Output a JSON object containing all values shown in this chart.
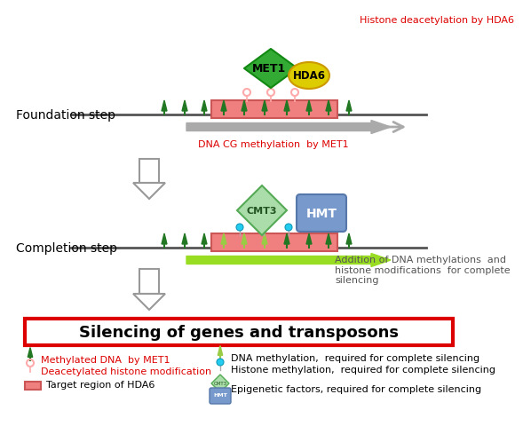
{
  "bg_color": "#ffffff",
  "title_text": "Silencing of genes and transposons",
  "foundation_label": "Foundation step",
  "completion_label": "Completion step",
  "annotation1": "Histone deacetylation by HDA6",
  "annotation2": "DNA CG methylation  by MET1",
  "annotation3": "Addition of DNA methylations  and\nhistone modifications  for complete\nsilencing",
  "annotation_color": "#dd0000",
  "annotation3_color": "#555555",
  "met1_color": "#33aa33",
  "hda6_color": "#ddcc00",
  "cmt3_color": "#aaddaa",
  "hmt_color": "#7799cc",
  "target_region_color": "#f08080",
  "target_region_edge": "#cc5555",
  "arrow1_color": "#aaaaaa",
  "arrow2_color": "#99dd22",
  "down_arrow_fill": "#ffffff",
  "down_arrow_edge": "#999999",
  "spike_dark": "#227722",
  "spike_light": "#99cc44",
  "cyan_dot": "#22ccee",
  "pink_circle_color": "#ffaaaa",
  "pink_stick_color": "#ffaaaa",
  "legend_left": [
    "Methylated DNA  by MET1",
    "Deacetylated histone modification",
    "Target region of HDA6"
  ],
  "legend_right": [
    "DNA methylation,  required for complete silencing",
    "Histone methylation,  required for complete silencing",
    "Epigenetic factors, required for complete silencing"
  ]
}
